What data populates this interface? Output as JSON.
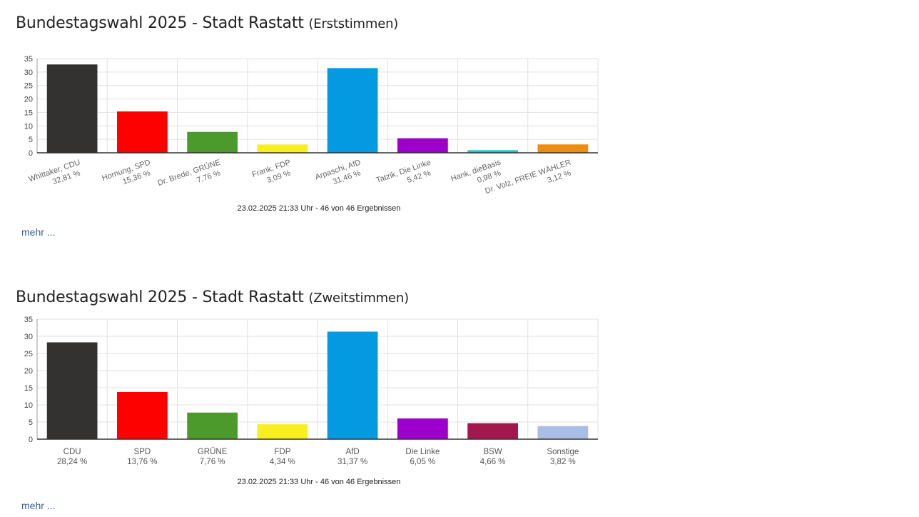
{
  "sections": [
    {
      "title": "Bundestagswahl 2025 - Stadt Rastatt",
      "subtitle": "(Erststimmen)",
      "timestamp": "23.02.2025 21:33 Uhr - 46 von 46 Ergebnissen",
      "more_label": "mehr ..."
    },
    {
      "title": "Bundestagswahl 2025 - Stadt Rastatt",
      "subtitle": "(Zweitstimmen)",
      "timestamp": "23.02.2025 21:33 Uhr - 46 von 46 Ergebnissen",
      "more_label": "mehr ..."
    }
  ],
  "chart_data": [
    {
      "type": "bar",
      "title": "Bundestagswahl 2025 - Stadt Rastatt (Erststimmen)",
      "xlabel": "",
      "ylabel": "",
      "ylim": [
        0,
        35
      ],
      "yticks": [
        0,
        5,
        10,
        15,
        20,
        25,
        30,
        35
      ],
      "grid": true,
      "label_style": "rotated",
      "categories": [
        "Whittaker, CDU",
        "Hornung, SPD",
        "Dr. Brede, GRÜNE",
        "Frank, FDP",
        "Arpaschi, AfD",
        "Tatzik, Die Linke",
        "Hank, dieBasis",
        "Dr. Volz, FREIE WÄHLER"
      ],
      "value_labels": [
        "32,81 %",
        "15,36 %",
        "7,76 %",
        "3,09 %",
        "31,46 %",
        "5,42 %",
        "0,98 %",
        "3,12 %"
      ],
      "values": [
        32.81,
        15.36,
        7.76,
        3.09,
        31.46,
        5.42,
        0.98,
        3.12
      ],
      "colors": [
        "#333230",
        "#fd0100",
        "#4b9a2b",
        "#f9ee20",
        "#039ae1",
        "#9d00cc",
        "#1ec7d6",
        "#ec8d10"
      ]
    },
    {
      "type": "bar",
      "title": "Bundestagswahl 2025 - Stadt Rastatt (Zweitstimmen)",
      "xlabel": "",
      "ylabel": "",
      "ylim": [
        0,
        35
      ],
      "yticks": [
        0,
        5,
        10,
        15,
        20,
        25,
        30,
        35
      ],
      "grid": true,
      "label_style": "horizontal",
      "categories": [
        "CDU",
        "SPD",
        "GRÜNE",
        "FDP",
        "AfD",
        "Die Linke",
        "BSW",
        "Sonstige"
      ],
      "value_labels": [
        "28,24 %",
        "13,76 %",
        "7,76 %",
        "4,34 %",
        "31,37 %",
        "6,05 %",
        "4,66 %",
        "3,82 %"
      ],
      "values": [
        28.24,
        13.76,
        7.76,
        4.34,
        31.37,
        6.05,
        4.66,
        3.82
      ],
      "colors": [
        "#333230",
        "#fd0100",
        "#4b9a2b",
        "#f9ee20",
        "#039ae1",
        "#9d00cc",
        "#a3174d",
        "#a9bde6"
      ]
    }
  ]
}
